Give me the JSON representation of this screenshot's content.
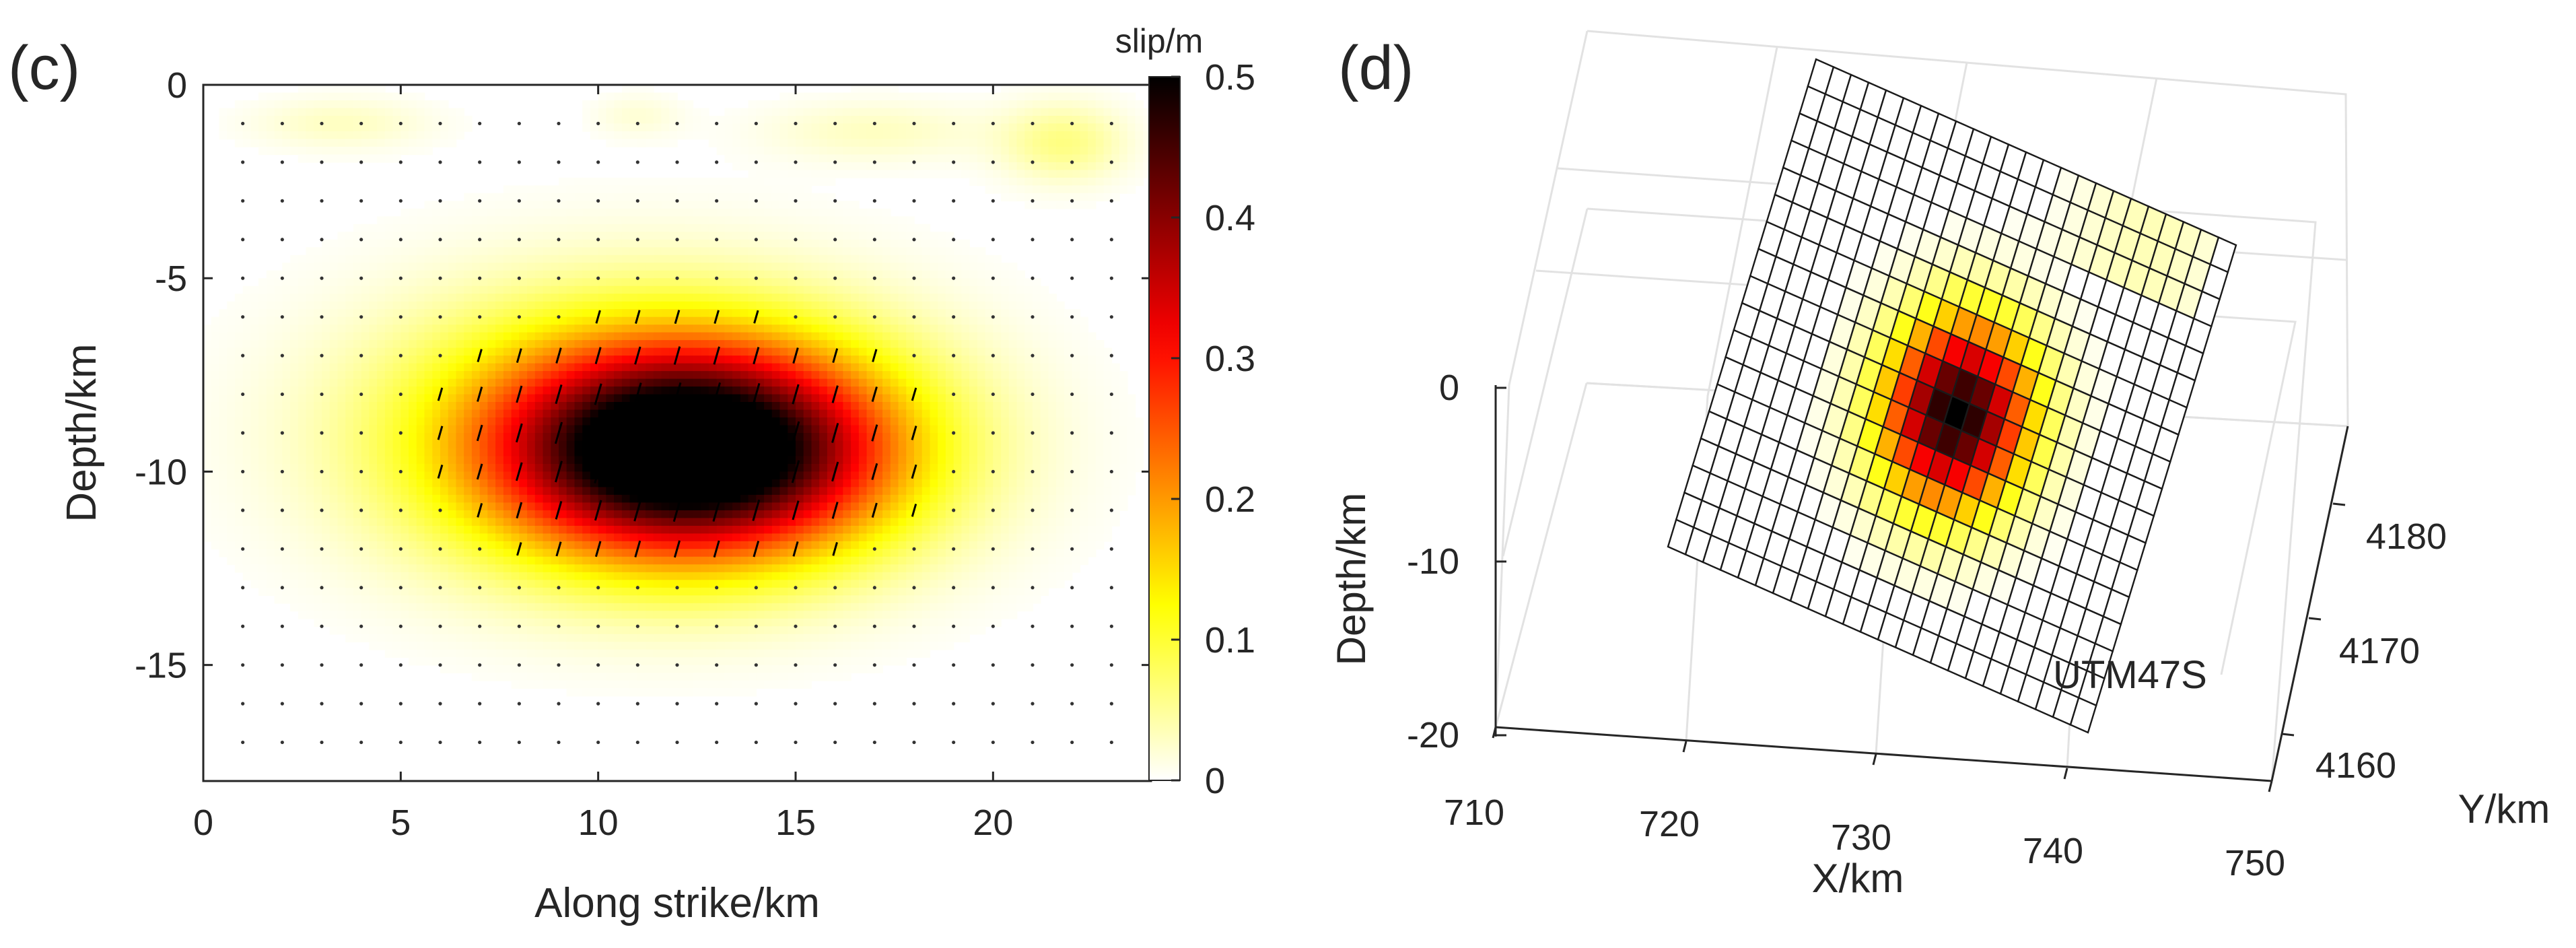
{
  "chart_data": [
    {
      "panel": "(c)",
      "type": "heatmap",
      "subtype": "fault slip distribution with slip-direction arrows",
      "xlabel": "Along strike/km",
      "ylabel": "Depth/km",
      "xlim": [
        0,
        24
      ],
      "ylim": [
        -18,
        0
      ],
      "xticks": [
        0,
        5,
        10,
        15,
        20
      ],
      "yticks": [
        0,
        -5,
        -10,
        -15
      ],
      "colorbar": {
        "label": "slip/m",
        "range": [
          0,
          0.5
        ],
        "ticks": [
          0,
          0.1,
          0.2,
          0.3,
          0.4,
          0.5
        ],
        "colormap": "hot (reversed)"
      },
      "grid_points": {
        "x": [
          1,
          23
        ],
        "y": [
          -1,
          -17
        ],
        "step": 1
      },
      "slip_patches": [
        {
          "center_x": 12.5,
          "center_depth": -9.5,
          "peak_slip": 0.5,
          "half_width_km": 4.2,
          "half_height_km": 2.3
        },
        {
          "center_x": 11.0,
          "center_depth": -9.0,
          "peak_slip": 0.18,
          "half_width_km": 5.5,
          "half_height_km": 3.0
        },
        {
          "center_x": 21.8,
          "center_depth": -1.5,
          "peak_slip": 0.06,
          "half_width_km": 1.4,
          "half_height_km": 0.9
        },
        {
          "center_x": 17.0,
          "center_depth": -1.2,
          "peak_slip": 0.03,
          "half_width_km": 2.5,
          "half_height_km": 0.7
        },
        {
          "center_x": 3.5,
          "center_depth": -1.0,
          "peak_slip": 0.03,
          "half_width_km": 2.0,
          "half_height_km": 0.6
        },
        {
          "center_x": 11.0,
          "center_depth": -0.8,
          "peak_slip": 0.02,
          "half_width_km": 1.0,
          "half_height_km": 0.5
        }
      ],
      "rake_direction": "near-vertical (dip-slip) arrows with slight clockwise tilt"
    },
    {
      "panel": "(d)",
      "type": "3d-surface",
      "subtype": "fault plane mesh in UTM coordinates",
      "xlabel": "X/km",
      "ylabel": "Y/km",
      "zlabel": "Depth/km",
      "xticks": [
        710,
        720,
        730,
        740,
        750
      ],
      "yticks": [
        4160,
        4170,
        4180
      ],
      "zticks": [
        0,
        -10,
        -20
      ],
      "annotation": "UTM47S",
      "mesh_size": [
        24,
        18
      ],
      "peak_cell": {
        "along_strike_index": 12,
        "down_dip_index": 9,
        "slip": 0.5
      }
    }
  ],
  "labels": {
    "panel_c": "(c)",
    "panel_d": "(d)",
    "x_label_c": "Along strike/km",
    "y_label_c": "Depth/km",
    "colorbar_label": "slip/m",
    "x_label_d": "X/km",
    "y_label_d": "Y/km",
    "z_label_d": "Depth/km",
    "utm": "UTM47S"
  },
  "colors": {
    "axis": "#262626",
    "grid3d": "#e2e2e2",
    "mesh": "#1a1a1a",
    "dots": "#333333"
  }
}
